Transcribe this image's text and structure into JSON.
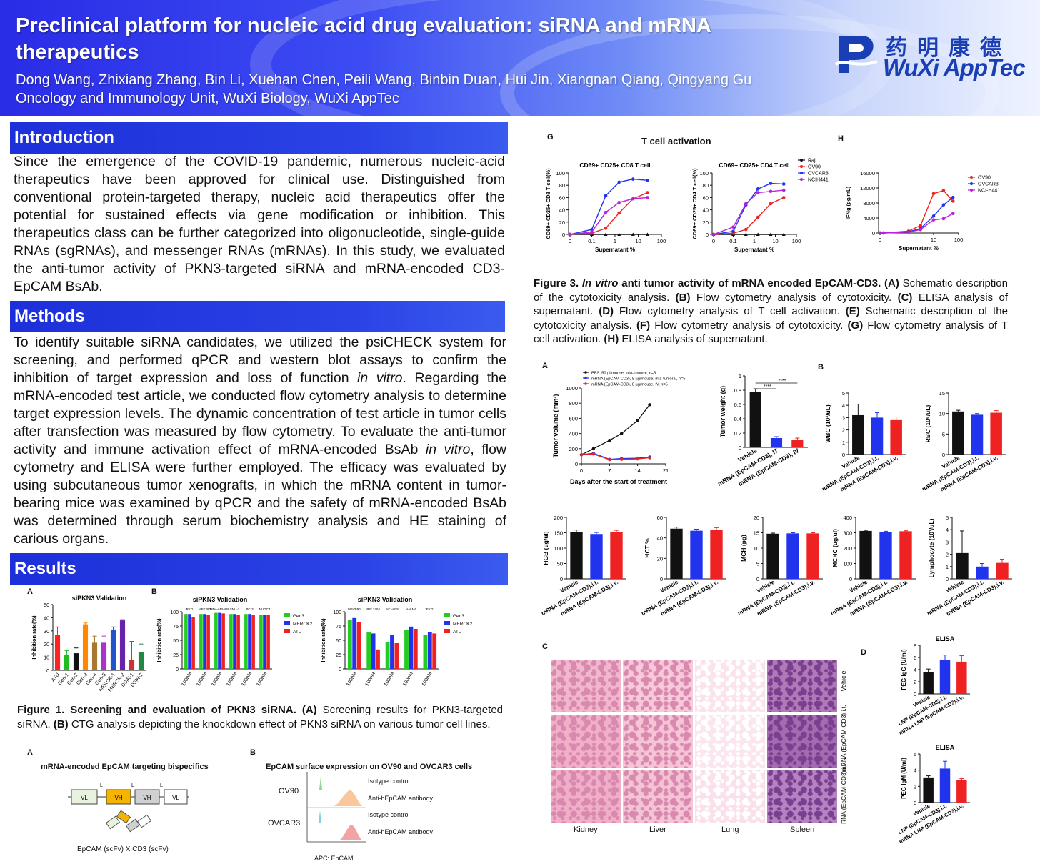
{
  "header": {
    "title": "Preclinical platform for nucleic acid drug evaluation: siRNA and mRNA therapeutics",
    "authors": "Dong Wang, Zhixiang Zhang, Bin Li, Xuehan Chen, Peili Wang, Binbin Duan, Hui Jin, Xiangnan Qiang, Qingyang Gu",
    "affiliation": "Oncology and  Immunology Unit, WuXi Biology, WuXi AppTec",
    "logo_cn": "药明康德",
    "logo_en": "WuXi AppTec",
    "colors": {
      "brand": "#1a3fb5",
      "bar": "#2b43e6"
    }
  },
  "intro": {
    "heading": "Introduction",
    "text": "Since the emergence of the COVID-19 pandemic, numerous nucleic-acid therapeutics have been approved for clinical use. Distinguished from conventional protein-targeted therapy, nucleic acid therapeutics offer the potential for sustained effects via gene modification or inhibition. This therapeutics class can be further categorized into oligonucleotide, single-guide RNAs (sgRNAs), and messenger RNAs (mRNAs). In this study, we evaluated the anti-tumor activity of PKN3-targeted siRNA and mRNA-encoded CD3-EpCAM BsAb."
  },
  "methods": {
    "heading": "Methods",
    "p1": "To identify suitable siRNA candidates, we utilized the psiCHECK system for screening, and performed qPCR and western blot assays to confirm the inhibition of target expression and loss of function ",
    "p1_italic": "in vitro",
    "p2": ". Regarding the mRNA-encoded test article, we conducted flow cytometry analysis to determine target expression levels. The dynamic concentration of test article in tumor cells after transfection was measured by flow cytometry. To evaluate the anti-tumor activity and immune activation effect of mRNA-encoded BsAb ",
    "p2_italic": "in vitro",
    "p3": ", flow cytometry and ELISA were further employed. The efficacy was evaluated by using subcutaneous tumor xenografts, in which the mRNA content in tumor-bearing mice was examined by qPCR and the safety of mRNA-encoded BsAb was determined through serum biochemistry analysis and HE staining of carious organs."
  },
  "results": {
    "heading": "Results",
    "fig1": {
      "panel_a": "A",
      "panel_b": "B",
      "caption_bold": "Figure 1. Screening and evaluation of PKN3 siRNA. (A)",
      "caption_1": " Screening results for PKN3-targeted siRNA. ",
      "caption_b": "(B)",
      "caption_2": " CTG analysis depicting the knockdown effect of PKN3 siRNA on various tumor cell lines."
    },
    "fig2": {
      "panel_a": "A",
      "panel_b": "B",
      "a_title": "mRNA-encoded EpCAM targeting bispecifics",
      "construct": [
        "VL",
        "VH",
        "VH",
        "VL"
      ],
      "linker": "L",
      "a_caption": "EpCAM (scFv) X CD3 (scFv)",
      "b_title": "EpCAM surface expression on OV90 and OVCAR3 cells",
      "cells": [
        "OV90",
        "OVCAR3"
      ],
      "legend": [
        "Isotype control",
        "Anti-hEpCAM antibody",
        "Isotype control",
        "Anti-hEpCAM antibody"
      ],
      "xlabel": "APC: EpCAM"
    },
    "fig3": {
      "panel_g": "G",
      "panel_h": "H",
      "group_title": "T cell activation",
      "caption_bold_1": "Figure 3. ",
      "caption_italic": "In vitro",
      "caption_bold_2": " anti tumor activity of mRNA encoded EpCAM-CD3. (A)",
      "caption_rest": [
        {
          "b": "",
          "t": " Schematic description of the cytotoxicity analysis. "
        },
        {
          "b": "(B)",
          "t": " Flow cytometry analysis of cytotoxicity. "
        },
        {
          "b": "(C)",
          "t": " ELISA analysis of supernatant. "
        },
        {
          "b": "(D)",
          "t": " Flow cytometry analysis of T cell activation. "
        },
        {
          "b": "(E)",
          "t": " Schematic description of the cytotoxicity analysis. "
        },
        {
          "b": "(F)",
          "t": " Flow cytometry analysis of cytotoxicity. "
        },
        {
          "b": "(G)",
          "t": " Flow cytometry analysis of T cell activation. "
        },
        {
          "b": "(H)",
          "t": " ELISA analysis of supernatant."
        }
      ]
    },
    "fig4": {
      "panel_a": "A",
      "panel_b": "B",
      "panel_c": "C",
      "panel_d": "D",
      "tumor_legend": [
        "PBS, 50 µl/mouse, inta-tumoral, n=5",
        "mRNA (EpCAM-CD3), 8 µg/mouse, inta-tumoral, n=5",
        "mRNA (EpCAM-CD3), 8 µg/mouse, IV, n=5"
      ],
      "organs": [
        "Kidney",
        "Liver",
        "Lung",
        "Spleen"
      ],
      "rows": [
        "Vehicle",
        "mRNA (EpCAM-CD3),i.t.",
        "mRNA (EpCAM-CD3),i.v."
      ],
      "elisa_title": "ELISA"
    }
  },
  "chart_data": [
    {
      "id": "fig1a",
      "type": "bar",
      "title": "siPKN3 Validation",
      "ylabel": "Inhibition rate(%)",
      "ylim": [
        0,
        50
      ],
      "yticks": [
        0,
        10,
        20,
        30,
        40,
        50
      ],
      "categories": [
        "ATU",
        "Gen-1",
        "Gen-2",
        "Gen-3",
        "Gen-4",
        "Gen-5",
        "MERCK-1",
        "MERCK-2",
        "DSIR-1",
        "DSIR-2"
      ],
      "values": [
        27,
        12,
        13,
        35,
        21,
        21,
        31,
        38,
        8,
        14
      ],
      "errors": [
        6,
        3,
        4,
        1,
        5,
        5,
        2,
        0.5,
        14,
        6
      ],
      "colors": [
        "#ff2222",
        "#22bb22",
        "#111111",
        "#ff8800",
        "#aa7733",
        "#aa33cc",
        "#2255cc",
        "#6622aa",
        "#cc3333",
        "#228844"
      ]
    },
    {
      "id": "fig1b1",
      "type": "bar",
      "title": "siPKN3 Validation",
      "ylabel": "Inhibition rate(%)",
      "ylim": [
        0,
        100
      ],
      "yticks": [
        0,
        25,
        50,
        75,
        100
      ],
      "categories": [
        "100nM",
        "100nM",
        "100nM",
        "100nM",
        "100nM",
        "100nM"
      ],
      "groups": [
        "RKO",
        "MFE280",
        "MDA-MB-436",
        "SNU-1",
        "PC-3",
        "NUGC4"
      ],
      "series": [
        {
          "name": "Gen3",
          "color": "#22cc22",
          "values": [
            96,
            96,
            98,
            96,
            96,
            95
          ]
        },
        {
          "name": "MERCK2",
          "color": "#2233ee",
          "values": [
            96,
            96,
            98,
            96,
            96,
            95
          ]
        },
        {
          "name": "ATU",
          "color": "#ee2222",
          "values": [
            90,
            94,
            97,
            95,
            95,
            94
          ]
        }
      ]
    },
    {
      "id": "fig1b2",
      "type": "bar",
      "title": "siPKN3 Validation",
      "ylabel": "Inhibition rate(%)",
      "ylim": [
        0,
        100
      ],
      "yticks": [
        0,
        25,
        50,
        75,
        100
      ],
      "categories": [
        "100nM",
        "100nM",
        "100nM",
        "100nM",
        "100nM"
      ],
      "groups": [
        "MAVER1",
        "BEL7404",
        "NCI-H28",
        "NALM6",
        "JEKO1"
      ],
      "series": [
        {
          "name": "Gen3",
          "color": "#22cc22",
          "values": [
            86,
            64,
            47,
            68,
            60
          ]
        },
        {
          "name": "MERCK2",
          "color": "#2233ee",
          "values": [
            89,
            62,
            59,
            74,
            65
          ]
        },
        {
          "name": "ATU",
          "color": "#ee2222",
          "values": [
            82,
            34,
            45,
            70,
            62
          ]
        }
      ]
    },
    {
      "id": "fig3g_cd8",
      "type": "line",
      "title": "CD69+ CD25+ CD8 T cell",
      "ylabel": "CD69+ CD25+ CD8 T cell(%)",
      "xlabel": "Supernatant %",
      "xticks": [
        "0",
        "0.1",
        "1",
        "10",
        "100"
      ],
      "ylim": [
        0,
        100
      ],
      "yticks": [
        0,
        20,
        40,
        60,
        80,
        100
      ],
      "x": [
        0,
        0.1,
        0.4,
        1.5,
        6,
        25
      ],
      "series": [
        {
          "name": "Raji",
          "color": "#111111",
          "values": [
            0,
            0,
            0,
            0,
            0,
            0
          ]
        },
        {
          "name": "OV90",
          "color": "#ee2222",
          "values": [
            0,
            2,
            10,
            35,
            58,
            68
          ]
        },
        {
          "name": "OVCAR3",
          "color": "#2233ee",
          "values": [
            0,
            8,
            63,
            85,
            90,
            88
          ]
        },
        {
          "name": "NCIH441",
          "color": "#bb22dd",
          "values": [
            0,
            4,
            36,
            52,
            58,
            60
          ]
        }
      ]
    },
    {
      "id": "fig3g_cd4",
      "type": "line",
      "title": "CD69+ CD25+ CD4 T cell",
      "ylabel": "CD69+ CD25+ CD4 T cell(%)",
      "xlabel": "Supernatant %",
      "xticks": [
        "0",
        "0.1",
        "1",
        "10",
        "100"
      ],
      "ylim": [
        0,
        100
      ],
      "yticks": [
        0,
        20,
        40,
        60,
        80,
        100
      ],
      "x": [
        0,
        0.1,
        0.4,
        1.5,
        6,
        25
      ],
      "series": [
        {
          "name": "Raji",
          "color": "#111111",
          "values": [
            0,
            0,
            0,
            0,
            0,
            0
          ]
        },
        {
          "name": "OV90",
          "color": "#ee2222",
          "values": [
            0,
            2,
            8,
            28,
            50,
            60
          ]
        },
        {
          "name": "OVCAR3",
          "color": "#2233ee",
          "values": [
            0,
            5,
            48,
            74,
            83,
            82
          ]
        },
        {
          "name": "NCIH441",
          "color": "#bb22dd",
          "values": [
            0,
            12,
            50,
            68,
            70,
            72
          ]
        }
      ]
    },
    {
      "id": "fig3h",
      "type": "line",
      "ylabel": "IFNg (pg/mL)",
      "xlabel": "Supernatant %",
      "xticks": [
        "0",
        "10",
        "100"
      ],
      "ylim": [
        0,
        16000
      ],
      "yticks": [
        0,
        4000,
        8000,
        12000,
        16000
      ],
      "x": [
        0,
        0.1,
        1,
        3,
        10,
        25,
        60
      ],
      "series": [
        {
          "name": "OV90",
          "color": "#ee2222",
          "values": [
            0,
            0,
            500,
            2000,
            10500,
            11300,
            8500
          ]
        },
        {
          "name": "OVCAR3",
          "color": "#2233ee",
          "values": [
            0,
            0,
            300,
            1200,
            4500,
            7500,
            9500
          ]
        },
        {
          "name": "NCI-H441",
          "color": "#bb22dd",
          "values": [
            0,
            0,
            200,
            900,
            3500,
            3800,
            5200
          ]
        }
      ]
    },
    {
      "id": "fig4a_volume",
      "type": "line",
      "ylabel": "Tumor volume (mm³)",
      "xlabel": "Days after the start of treatment",
      "xlim": [
        0,
        21
      ],
      "xticks": [
        0,
        7,
        14,
        21
      ],
      "ylim": [
        0,
        1000
      ],
      "yticks": [
        0,
        200,
        400,
        600,
        800,
        1000
      ],
      "x": [
        0,
        3,
        7,
        10,
        14,
        17
      ],
      "series": [
        {
          "name": "PBS, 50 µl/mouse, inta-tumoral, n=5",
          "color": "#111111",
          "values": [
            120,
            200,
            310,
            400,
            570,
            780
          ]
        },
        {
          "name": "mRNA (EpCAM-CD3), 8 µg/mouse, inta-tumoral, n=5",
          "color": "#2233ee",
          "values": [
            120,
            140,
            60,
            70,
            75,
            90
          ]
        },
        {
          "name": "mRNA (EpCAM-CD3), 8 µg/mouse, IV, n=5",
          "color": "#ee2222",
          "values": [
            120,
            130,
            55,
            60,
            65,
            80
          ]
        }
      ]
    },
    {
      "id": "fig4a_weight",
      "type": "bar",
      "ylabel": "Tumor weight (g)",
      "ylim": [
        0,
        1.0
      ],
      "yticks": [
        0,
        0.2,
        0.4,
        0.6,
        0.8,
        1.0
      ],
      "categories": [
        "Vehicle",
        "mRNA (EpCAM-CD3), IT",
        "mRNA (EpCAM-CD3), IV"
      ],
      "values": [
        0.78,
        0.13,
        0.1
      ],
      "errors": [
        0.04,
        0.02,
        0.03
      ],
      "colors": [
        "#111111",
        "#2233ee",
        "#ee2222"
      ],
      "annotations": [
        "****",
        "****"
      ]
    },
    {
      "id": "fig4b_wbc",
      "type": "bar",
      "ylabel": "WBC (10³/uL)",
      "ylim": [
        0,
        5
      ],
      "yticks": [
        0,
        1,
        2,
        3,
        4,
        5
      ],
      "categories": [
        "Vehicle",
        "mRNA (EpCAM-CD3),i.t.",
        "mRNA (EpCAM-CD3),i.v."
      ],
      "values": [
        3.2,
        3.0,
        2.8
      ],
      "errors": [
        0.9,
        0.4,
        0.25
      ],
      "colors": [
        "#111111",
        "#2233ee",
        "#ee2222"
      ]
    },
    {
      "id": "fig4b_rbc",
      "type": "bar",
      "ylabel": "RBC (10⁶/uL)",
      "ylim": [
        0,
        15
      ],
      "yticks": [
        0,
        5,
        10,
        15
      ],
      "categories": [
        "Vehicle",
        "mRNA (EpCAM-CD3),i.t.",
        "mRNA (EpCAM-CD3),i.v."
      ],
      "values": [
        10.5,
        9.7,
        10.2
      ],
      "errors": [
        0.3,
        0.3,
        0.5
      ],
      "colors": [
        "#111111",
        "#2233ee",
        "#ee2222"
      ]
    },
    {
      "id": "fig4b_hgb",
      "type": "bar",
      "ylabel": "HGB (ug/ul)",
      "ylim": [
        0,
        200
      ],
      "yticks": [
        0,
        50,
        100,
        150,
        200
      ],
      "categories": [
        "Vehicle",
        "mRNA (EpCAM-CD3),i.t.",
        "mRNA (EpCAM-CD3),i.v."
      ],
      "values": [
        153,
        146,
        152
      ],
      "errors": [
        6,
        5,
        6
      ],
      "colors": [
        "#111111",
        "#2233ee",
        "#ee2222"
      ]
    },
    {
      "id": "fig4b_hct",
      "type": "bar",
      "ylabel": "HCT %",
      "ylim": [
        0,
        60
      ],
      "yticks": [
        0,
        20,
        40,
        60
      ],
      "categories": [
        "Vehicle",
        "mRNA (EpCAM-CD3),i.t.",
        "mRNA (EpCAM-CD3),i.v."
      ],
      "values": [
        49,
        47,
        48
      ],
      "errors": [
        1.5,
        1.5,
        2
      ],
      "colors": [
        "#111111",
        "#2233ee",
        "#ee2222"
      ]
    },
    {
      "id": "fig4b_mch",
      "type": "bar",
      "ylabel": "MCH (pg)",
      "ylim": [
        0,
        20
      ],
      "yticks": [
        0,
        5,
        10,
        15,
        20
      ],
      "categories": [
        "Vehicle",
        "mRNA (EpCAM-CD3),i.t.",
        "mRNA (EpCAM-CD3),i.v."
      ],
      "values": [
        14.7,
        14.8,
        14.8
      ],
      "errors": [
        0.2,
        0.2,
        0.2
      ],
      "colors": [
        "#111111",
        "#2233ee",
        "#ee2222"
      ]
    },
    {
      "id": "fig4b_mchc",
      "type": "bar",
      "ylabel": "MCHC (ug/ul)",
      "ylim": [
        0,
        400
      ],
      "yticks": [
        0,
        100,
        200,
        300,
        400
      ],
      "categories": [
        "Vehicle",
        "mRNA (EpCAM-CD3),i.t.",
        "mRNA (EpCAM-CD3),i.v."
      ],
      "values": [
        312,
        307,
        310
      ],
      "errors": [
        4,
        3,
        3
      ],
      "colors": [
        "#111111",
        "#2233ee",
        "#ee2222"
      ]
    },
    {
      "id": "fig4b_lym",
      "type": "bar",
      "ylabel": "Lymphocyte (10³/uL)",
      "ylim": [
        0,
        5
      ],
      "yticks": [
        0,
        1,
        2,
        3,
        4,
        5
      ],
      "categories": [
        "Vehicle",
        "mRNA (EpCAM-CD3),i.t.",
        "mRNA (EpCAM-CD3),i.v."
      ],
      "values": [
        2.1,
        1.0,
        1.3
      ],
      "errors": [
        1.8,
        0.25,
        0.3
      ],
      "colors": [
        "#111111",
        "#2233ee",
        "#ee2222"
      ]
    },
    {
      "id": "fig4d_igg",
      "type": "bar",
      "title": "ELISA",
      "ylabel": "PEG IgG (U/ml)",
      "ylim": [
        0,
        8
      ],
      "yticks": [
        0,
        2,
        4,
        6,
        8
      ],
      "categories": [
        "Vehicle",
        "mRNA LNP (EpCAM-CD3),i.t.",
        "mRNA LNP (EpCAM-CD3),i.v."
      ],
      "values": [
        3.6,
        5.6,
        5.3
      ],
      "errors": [
        0.5,
        0.8,
        1.0
      ],
      "colors": [
        "#111111",
        "#2233ee",
        "#ee2222"
      ]
    },
    {
      "id": "fig4d_igm",
      "type": "bar",
      "title": "ELISA",
      "ylabel": "PEG IgM (U/ml)",
      "ylim": [
        0,
        6
      ],
      "yticks": [
        0,
        2,
        4,
        6
      ],
      "categories": [
        "Vehicle",
        "mRNA LNP (EpCAM-CD3),i.t.",
        "mRNA LNP (EpCAM-CD3),i.v."
      ],
      "values": [
        3.1,
        4.2,
        2.8
      ],
      "errors": [
        0.2,
        0.9,
        0.15
      ],
      "colors": [
        "#111111",
        "#2233ee",
        "#ee2222"
      ]
    }
  ]
}
